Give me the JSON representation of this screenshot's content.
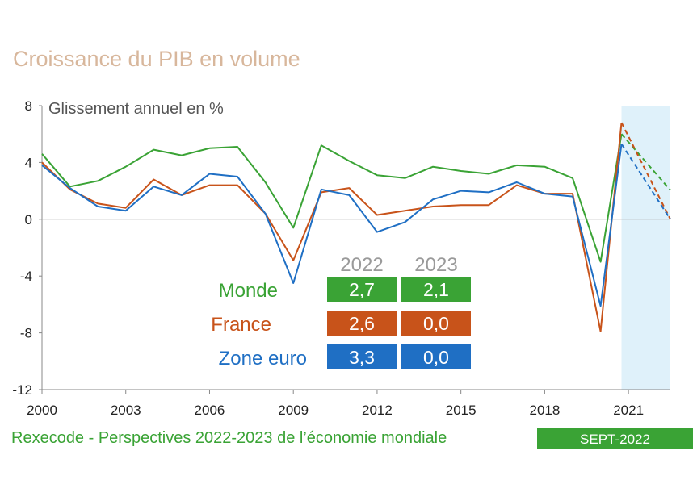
{
  "title": "Croissance du PIB en volume",
  "footer": {
    "source": "Rexecode - Perspectives 2022-2023 de l’économie mondiale",
    "badge": "SEPT-2022"
  },
  "colors": {
    "monde": "#3aa335",
    "france": "#c8531a",
    "zone_euro": "#1f6fc4",
    "forecast_band": "#dff1fa",
    "axis": "#888888",
    "grid": "#aaaaaa",
    "year_header": "#9a9a9a"
  },
  "chart_data": {
    "type": "line",
    "title": "Croissance du PIB en volume",
    "ylabel": "Glissement annuel en %",
    "xlabel": "",
    "x_range": [
      2000,
      2022.5
    ],
    "ylim": [
      -12,
      8
    ],
    "yticks": [
      8,
      4,
      0,
      -4,
      -8,
      -12
    ],
    "ytick_labels": [
      "8",
      "4",
      "0",
      "-4",
      "-8",
      "-12"
    ],
    "xticks": [
      2000,
      2003,
      2006,
      2009,
      2012,
      2015,
      2018,
      2021
    ],
    "xtick_labels": [
      "2000",
      "2003",
      "2006",
      "2009",
      "2012",
      "2015",
      "2018",
      "2021"
    ],
    "forecast_start": 2020.75,
    "x": [
      2000,
      2001,
      2002,
      2003,
      2004,
      2005,
      2006,
      2007,
      2008,
      2009,
      2010,
      2011,
      2012,
      2013,
      2014,
      2015,
      2016,
      2017,
      2018,
      2019,
      2020,
      2020.75
    ],
    "series": [
      {
        "name": "Monde",
        "key": "monde",
        "values": [
          4.6,
          2.3,
          2.7,
          3.7,
          4.9,
          4.5,
          5.0,
          5.1,
          2.6,
          -0.6,
          5.2,
          4.1,
          3.1,
          2.9,
          3.7,
          3.4,
          3.2,
          3.8,
          3.7,
          2.9,
          -3.0,
          6.0
        ],
        "forecast_x": [
          2020.75,
          2022.5
        ],
        "forecast_values": [
          6.0,
          2.05
        ]
      },
      {
        "name": "France",
        "key": "france",
        "values": [
          4.0,
          2.1,
          1.1,
          0.8,
          2.8,
          1.7,
          2.4,
          2.4,
          0.4,
          -2.9,
          1.9,
          2.2,
          0.3,
          0.6,
          0.9,
          1.0,
          1.0,
          2.4,
          1.8,
          1.8,
          -7.9,
          6.8
        ],
        "forecast_x": [
          2020.75,
          2022.5
        ],
        "forecast_values": [
          6.8,
          0.0
        ]
      },
      {
        "name": "Zone euro",
        "key": "zone_euro",
        "values": [
          3.8,
          2.2,
          0.9,
          0.6,
          2.3,
          1.7,
          3.2,
          3.0,
          0.4,
          -4.5,
          2.1,
          1.7,
          -0.9,
          -0.2,
          1.4,
          2.0,
          1.9,
          2.6,
          1.8,
          1.6,
          -6.1,
          5.3
        ],
        "forecast_x": [
          2020.75,
          2022.5
        ],
        "forecast_values": [
          5.3,
          0.0
        ]
      }
    ],
    "forecast_table": {
      "years": [
        "2022",
        "2023"
      ],
      "rows": [
        {
          "name": "Monde",
          "key": "monde",
          "values": [
            "2,7",
            "2,1"
          ]
        },
        {
          "name": "France",
          "key": "france",
          "values": [
            "2,6",
            "0,0"
          ]
        },
        {
          "name": "Zone euro",
          "key": "zone_euro",
          "values": [
            "3,3",
            "0,0"
          ]
        }
      ]
    }
  }
}
